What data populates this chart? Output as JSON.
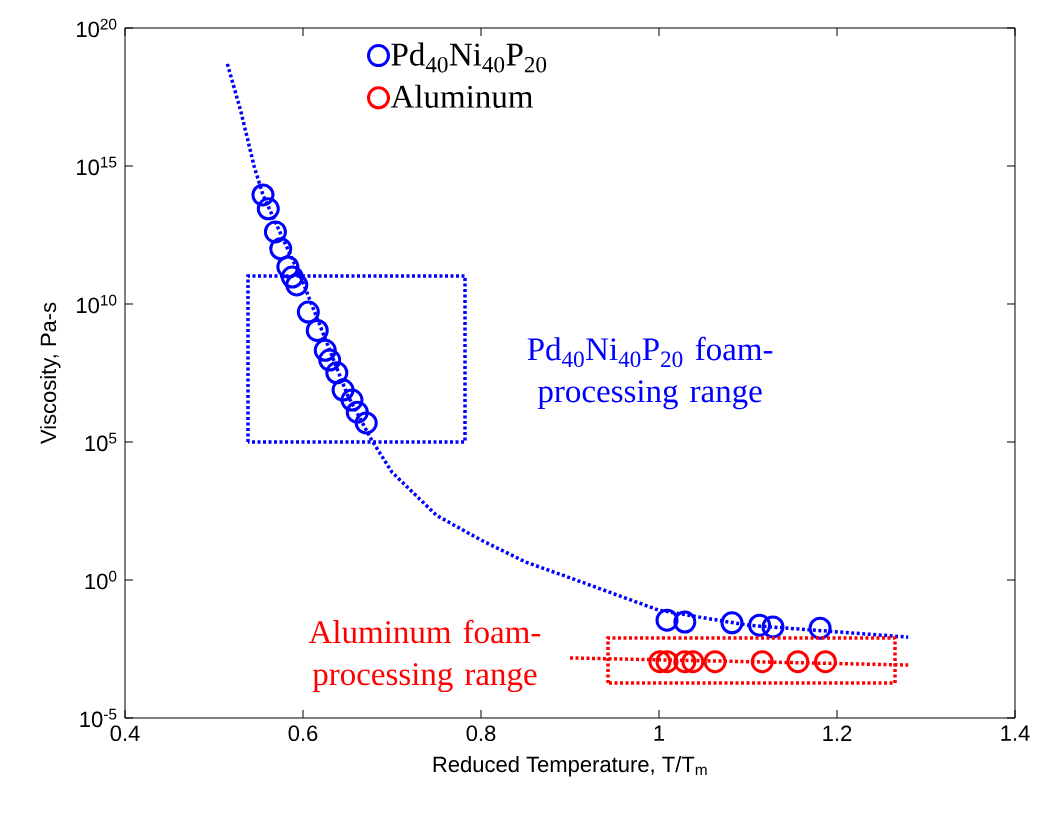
{
  "chart_data": {
    "type": "scatter",
    "xlabel": "Reduced Temperature, T/T$_{m}$",
    "ylabel": "Viscosity, Pa-s",
    "log": "y",
    "xlim": [
      0.4,
      1.4
    ],
    "ylim": [
      1e-05,
      1e+20
    ],
    "xticks": [
      0.4,
      0.6,
      0.8,
      1,
      1.2,
      1.4
    ],
    "yticks": [
      {
        "value": 1e-05,
        "label": "10$^{-5}$"
      },
      {
        "value": 1,
        "label": "10$^{0}$"
      },
      {
        "value": 100000.0,
        "label": "10$^{5}$"
      },
      {
        "value": 10000000000.0,
        "label": "10$^{10}$"
      },
      {
        "value": 1000000000000000.0,
        "label": "10$^{15}$"
      },
      {
        "value": 1e+20,
        "label": "10$^{20}$"
      }
    ],
    "legend": "top left",
    "grid": false,
    "series": [
      {
        "name": "Pd$_{40}$Ni$_{40}$P$_{20}$",
        "marker": "circle",
        "color": "#0000ff",
        "x": [
          0.555,
          0.561,
          0.569,
          0.575,
          0.583,
          0.588,
          0.593,
          0.606,
          0.616,
          0.625,
          0.63,
          0.638,
          0.645,
          0.655,
          0.661,
          0.671,
          1.009,
          1.029,
          1.082,
          1.113,
          1.128,
          1.181
        ],
        "values": [
          89000000000000.0,
          28000000000000.0,
          4100000000000.0,
          1000000000000.0,
          220000000000.0,
          95000000000.0,
          49000000000.0,
          5100000000.0,
          1100000000.0,
          210000000.0,
          93000000.0,
          32000000.0,
          7600000.0,
          3300000.0,
          1200000.0,
          490000.0,
          0.035,
          0.03,
          0.028,
          0.023,
          0.02,
          0.018
        ]
      },
      {
        "name": "Aluminum",
        "marker": "circle",
        "color": "#ff0000",
        "x": [
          1.001,
          1.009,
          1.029,
          1.038,
          1.063,
          1.116,
          1.156,
          1.187
        ],
        "values": [
          0.0011,
          0.0011,
          0.0011,
          0.0011,
          0.0011,
          0.0011,
          0.0011,
          0.0011
        ]
      },
      {
        "type": "line",
        "marker": "none",
        "line_style": "dotted",
        "color": "#0000ff",
        "x": [
          0.515,
          0.53,
          0.545,
          0.555,
          0.6,
          0.65,
          0.677,
          0.7,
          0.75,
          0.8,
          0.85,
          0.9,
          1.0,
          1.1,
          1.28
        ],
        "values": [
          5e+18,
          1e+17,
          1000000000000000.0,
          90000000000000.0,
          60000000000.0,
          5000000.0,
          120000.0,
          8000.0,
          220,
          28,
          4.5,
          1.2,
          0.08,
          0.023,
          0.0085
        ]
      },
      {
        "type": "line",
        "marker": "none",
        "line_style": "dotted",
        "color": "#ff0000",
        "x": [
          0.9,
          1.28
        ],
        "values": [
          0.0015,
          0.00083
        ]
      }
    ],
    "annotations": [
      "Pd$_{40}$Ni$_{40}$P$_{20}$ foam-processing range",
      "Aluminum foam-processing range"
    ]
  }
}
